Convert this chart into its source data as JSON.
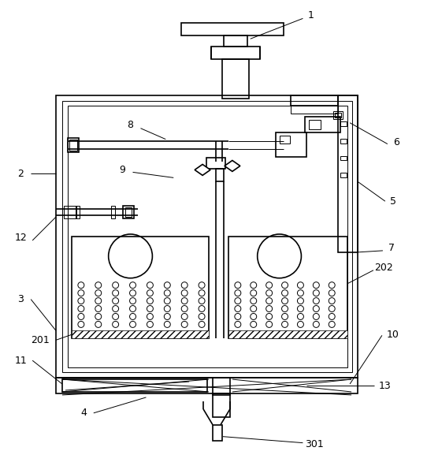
{
  "bg_color": "#ffffff",
  "line_color": "#000000",
  "lw": 1.2,
  "tlw": 0.7,
  "figsize": [
    5.42,
    5.91
  ],
  "dpi": 100
}
